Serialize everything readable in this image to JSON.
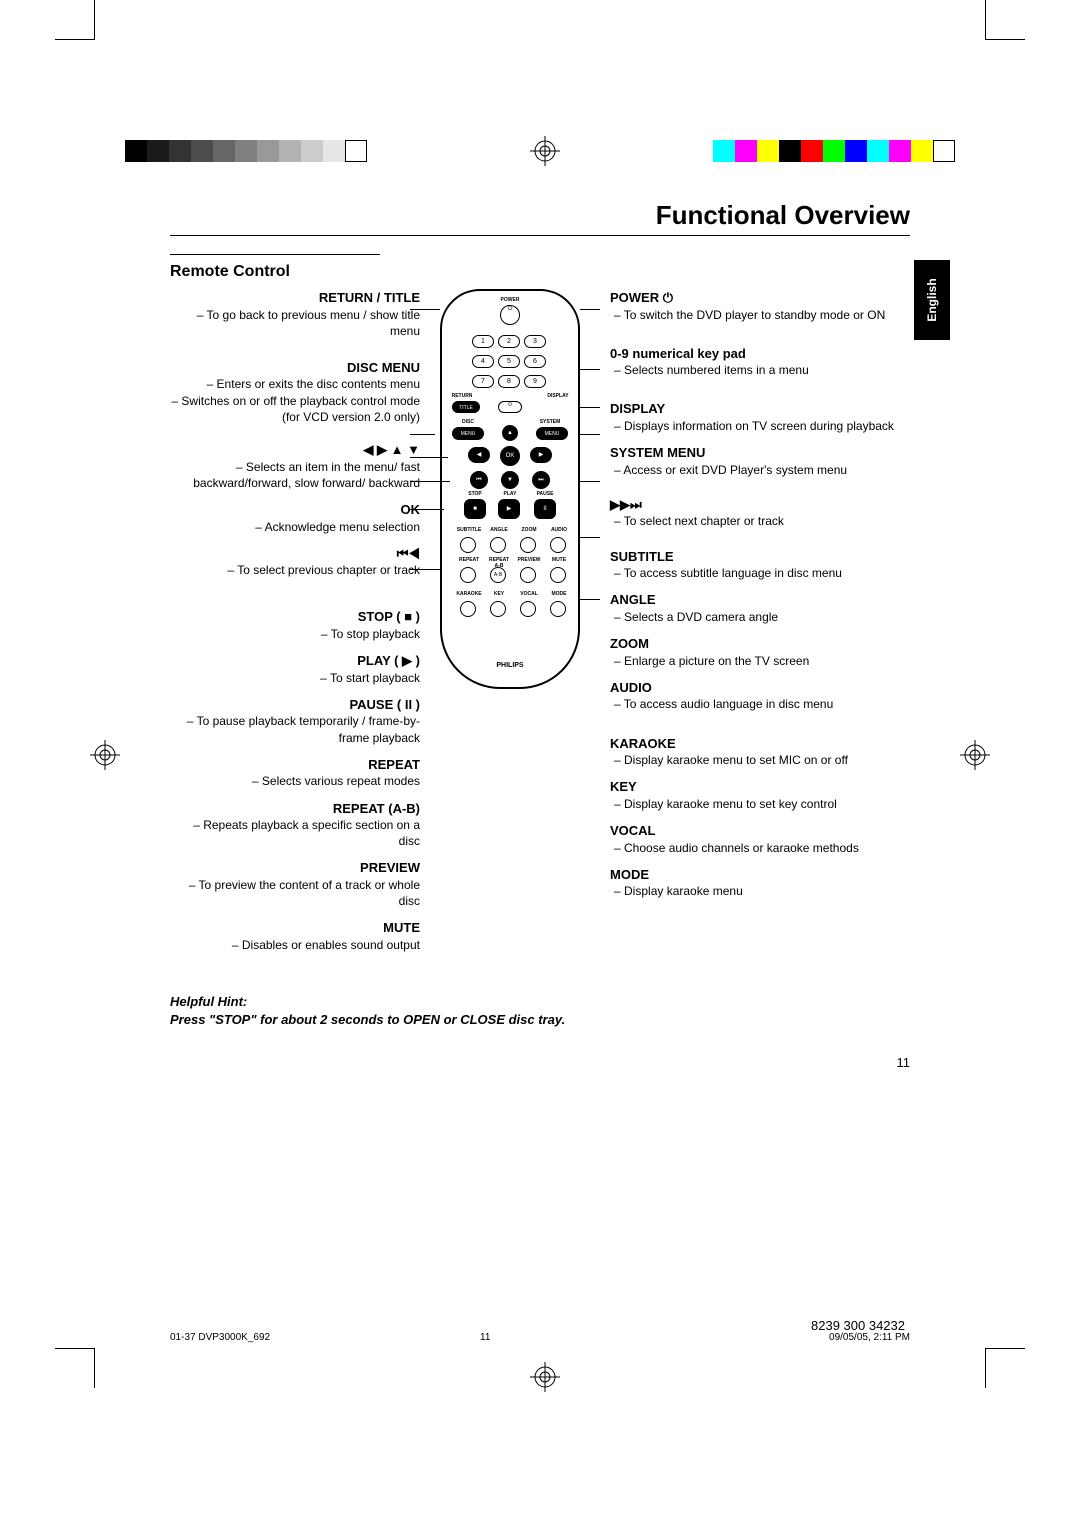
{
  "page_title": "Functional Overview",
  "section_title": "Remote Control",
  "language_tab": "English",
  "page_number": "11",
  "footer_left": "01-37 DVP3000K_692",
  "footer_mid": "11",
  "footer_right": "09/05/05, 2:11 PM",
  "code_number": "8239 300 34232",
  "hint_label": "Helpful Hint:",
  "hint_text": "Press \"STOP\" for about 2 seconds to OPEN or CLOSE disc tray.",
  "left_items": [
    {
      "h": "RETURN / TITLE",
      "d": "– To go back to previous menu / show title menu"
    },
    {
      "h": "DISC MENU",
      "d": "– Enters or exits the disc contents menu\n– Switches on or off the playback control mode (for VCD version 2.0 only)"
    },
    {
      "h": "◀ ▶ ▲ ▼",
      "d": "– Selects an item in the menu/ fast backward/forward, slow forward/ backward"
    },
    {
      "h": "OK",
      "d": "– Acknowledge menu selection"
    },
    {
      "h": "⏮◀",
      "d": "– To select previous chapter or track"
    },
    {
      "h": "STOP ( ■ )",
      "d": "– To stop playback"
    },
    {
      "h": "PLAY ( ▶ )",
      "d": "– To start playback"
    },
    {
      "h": "PAUSE ( II )",
      "d": "– To pause playback temporarily / frame-by-frame playback"
    },
    {
      "h": "REPEAT",
      "d": "– Selects various repeat modes"
    },
    {
      "h": "REPEAT (A-B)",
      "d": "– Repeats playback a specific section on a disc"
    },
    {
      "h": "PREVIEW",
      "d": "– To preview the content of a track or whole disc"
    },
    {
      "h": "MUTE",
      "d": "– Disables or enables sound output"
    }
  ],
  "right_items": [
    {
      "h": "POWER ⏻",
      "d": "To switch the DVD player to standby mode or ON"
    },
    {
      "h": "0-9 numerical key pad",
      "d": "Selects numbered items in a menu"
    },
    {
      "h": "DISPLAY",
      "d": "Displays information on TV screen during playback"
    },
    {
      "h": "SYSTEM MENU",
      "d": "Access or exit DVD Player's system menu"
    },
    {
      "h": "▶▶⏭",
      "d": "To select next chapter or track"
    },
    {
      "h": "SUBTITLE",
      "d": "To access subtitle language in disc menu"
    },
    {
      "h": "ANGLE",
      "d": "Selects a DVD camera angle"
    },
    {
      "h": "ZOOM",
      "d": "Enlarge a picture on the TV screen"
    },
    {
      "h": "AUDIO",
      "d": "To access audio language in disc menu"
    },
    {
      "h": "KARAOKE",
      "d": "Display karaoke menu to set MIC on or off"
    },
    {
      "h": "KEY",
      "d": "Display karaoke menu to set key control"
    },
    {
      "h": "VOCAL",
      "d": "Choose audio channels or karaoke methods"
    },
    {
      "h": "MODE",
      "d": "Display karaoke menu"
    }
  ],
  "remote_labels": {
    "brand": "PHILIPS",
    "power": "POWER",
    "keys": [
      "1",
      "2",
      "3",
      "4",
      "5",
      "6",
      "7",
      "8",
      "9",
      "0"
    ],
    "return": "RETURN",
    "display": "DISPLAY",
    "title": "TITLE",
    "disc": "DISC",
    "system": "SYSTEM",
    "menu": "MENU",
    "ok": "OK",
    "stop": "STOP",
    "play": "PLAY",
    "pause": "PAUSE",
    "row1": [
      "SUBTITLE",
      "ANGLE",
      "ZOOM",
      "AUDIO"
    ],
    "row2": [
      "REPEAT",
      "REPEAT",
      "PREVIEW",
      "MUTE"
    ],
    "row2b": [
      "",
      "A-B",
      "",
      ""
    ],
    "row3": [
      "KARAOKE",
      "KEY",
      "VOCAL",
      "MODE"
    ]
  },
  "grayswatches": [
    "#000000",
    "#1a1a1a",
    "#333333",
    "#4d4d4d",
    "#666666",
    "#808080",
    "#999999",
    "#b3b3b3",
    "#cccccc",
    "#e6e6e6",
    "#ffffff"
  ],
  "colorswatches": [
    "#00ffff",
    "#ff00ff",
    "#ffff00",
    "#000000",
    "#ff0000",
    "#00ff00",
    "#0000ff",
    "#00ffff",
    "#ff00ff",
    "#ffff00",
    "#ffffff"
  ]
}
